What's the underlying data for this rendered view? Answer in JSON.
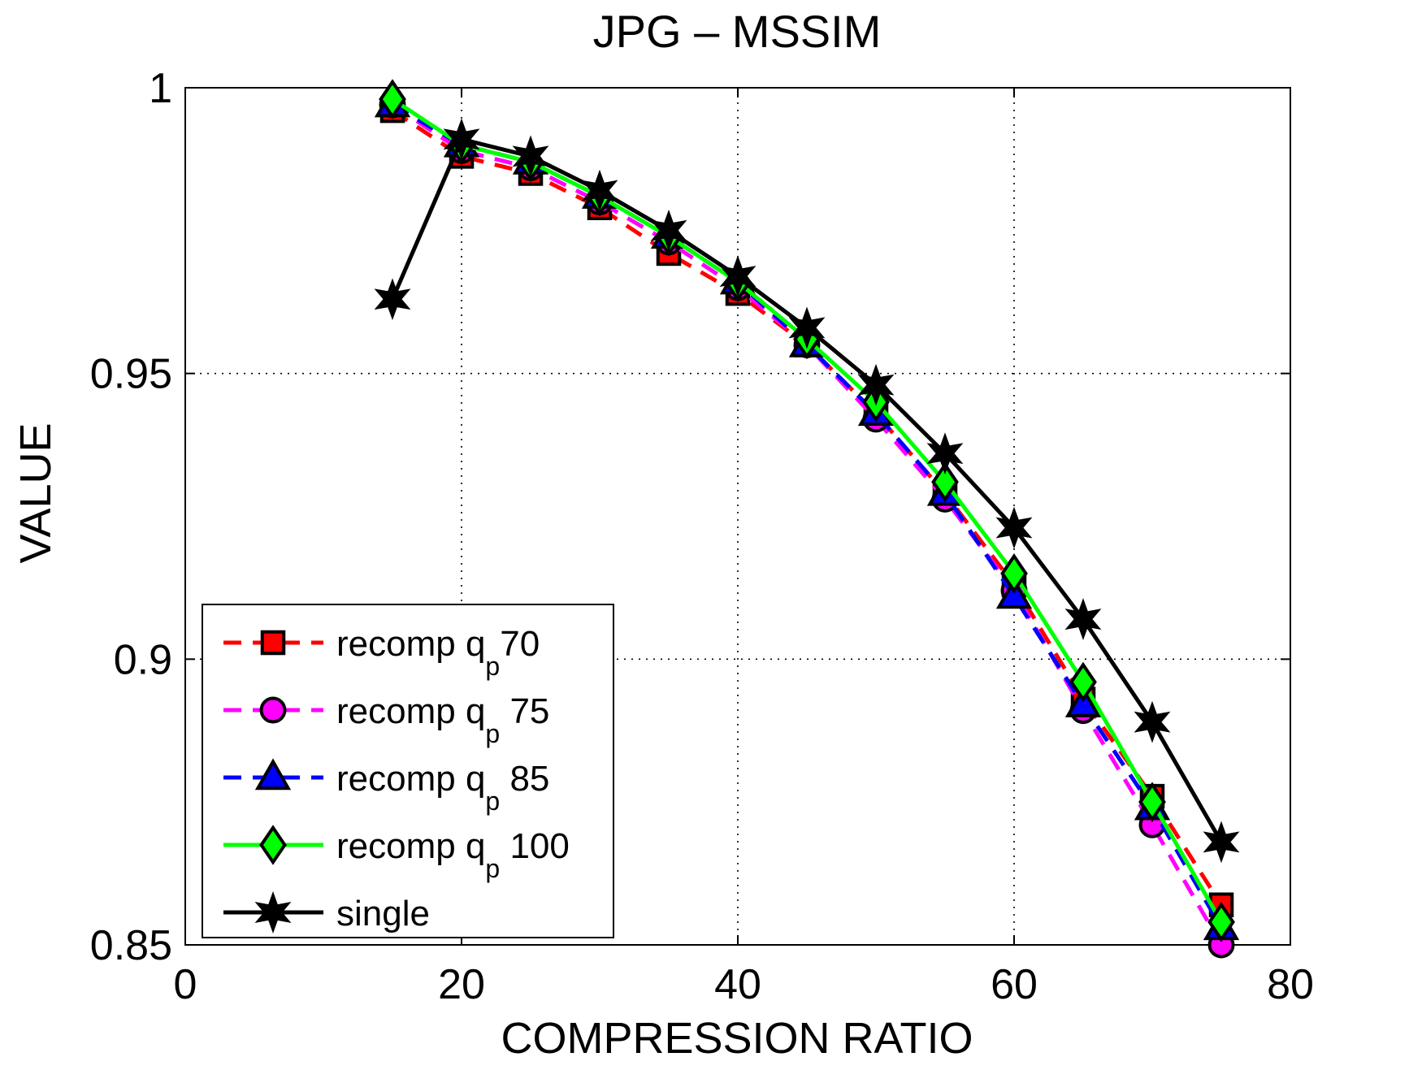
{
  "chart_data": {
    "type": "line",
    "title": "JPG – MSSIM",
    "xlabel": "COMPRESSION RATIO",
    "ylabel": "VALUE",
    "xlim": [
      0,
      80
    ],
    "ylim": [
      0.85,
      1
    ],
    "xticks": [
      0,
      20,
      40,
      60,
      80
    ],
    "xtick_labels": [
      "0",
      "20",
      "40",
      "60",
      "80"
    ],
    "yticks": [
      0.85,
      0.9,
      0.95,
      1
    ],
    "ytick_labels": [
      "0.85",
      "0.9",
      "0.95",
      "1"
    ],
    "grid": true,
    "legend_position": "bottom-left",
    "x": [
      15,
      20,
      25,
      30,
      35,
      40,
      45,
      50,
      55,
      60,
      65,
      70,
      75
    ],
    "series": [
      {
        "name": "recomp q",
        "name_sub": "p",
        "name_tail": "70",
        "color": "#ff0000",
        "line_style": "dashed",
        "marker": "square",
        "values": [
          0.996,
          0.988,
          0.985,
          0.979,
          0.971,
          0.964,
          0.955,
          0.943,
          0.929,
          0.913,
          0.893,
          0.876,
          0.857
        ]
      },
      {
        "name": "recomp q",
        "name_sub": "p",
        "name_tail": " 75",
        "color": "#ff00ff",
        "line_style": "dashed",
        "marker": "circle",
        "values": [
          0.997,
          0.989,
          0.986,
          0.98,
          0.973,
          0.965,
          0.955,
          0.942,
          0.928,
          0.912,
          0.891,
          0.871,
          0.85
        ]
      },
      {
        "name": "recomp q",
        "name_sub": "p",
        "name_tail": " 85",
        "color": "#0000ff",
        "line_style": "dashed",
        "marker": "triangle",
        "values": [
          0.997,
          0.99,
          0.987,
          0.981,
          0.974,
          0.966,
          0.955,
          0.943,
          0.929,
          0.911,
          0.892,
          0.874,
          0.853
        ]
      },
      {
        "name": "recomp q",
        "name_sub": "p",
        "name_tail": " 100",
        "color": "#00ff00",
        "line_style": "solid",
        "marker": "diamond",
        "values": [
          0.998,
          0.99,
          0.987,
          0.981,
          0.974,
          0.966,
          0.956,
          0.945,
          0.931,
          0.915,
          0.896,
          0.875,
          0.854
        ]
      },
      {
        "name": "single",
        "name_sub": "",
        "name_tail": "",
        "color": "#000000",
        "line_style": "solid",
        "marker": "hexagram",
        "values": [
          0.963,
          0.991,
          0.988,
          0.982,
          0.975,
          0.967,
          0.958,
          0.948,
          0.936,
          0.923,
          0.907,
          0.889,
          0.868
        ]
      }
    ]
  }
}
